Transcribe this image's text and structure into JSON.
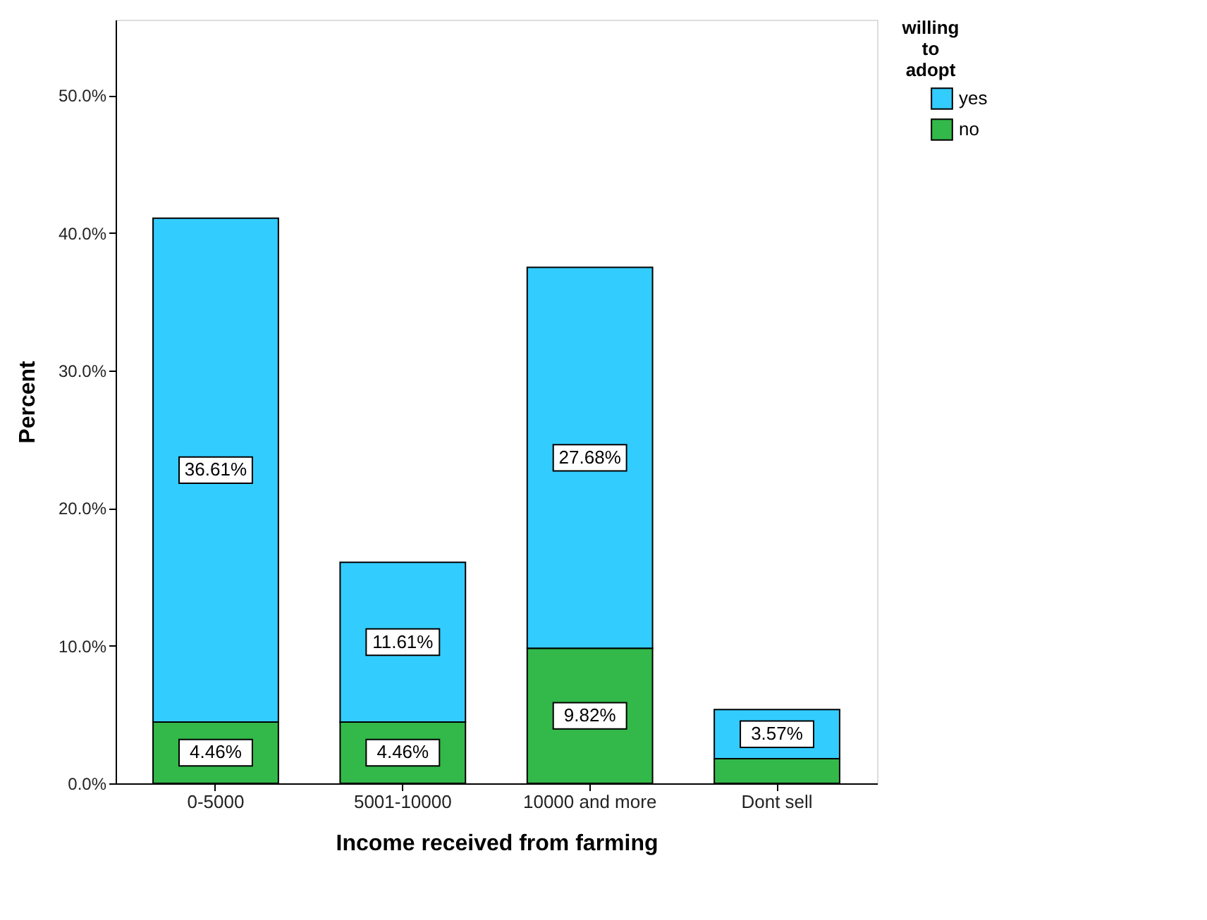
{
  "chart_data": {
    "type": "bar",
    "stacked": true,
    "xlabel": "Income received from farming",
    "ylabel": "Percent",
    "legend_title": "willing to adopt",
    "legend": "top right",
    "grid": false,
    "categories": [
      "0-5000",
      "5001-10000",
      "10000 and more",
      "Dont sell"
    ],
    "series": [
      {
        "name": "no",
        "color": "#33b94a",
        "values": [
          4.46,
          4.46,
          9.82,
          1.79
        ],
        "value_labels": [
          "4.46%",
          "4.46%",
          "9.82%",
          null
        ]
      },
      {
        "name": "yes",
        "color": "#33ccff",
        "values": [
          36.61,
          11.61,
          27.68,
          3.57
        ],
        "value_labels": [
          "36.61%",
          "11.61%",
          "27.68%",
          "3.57%"
        ]
      }
    ],
    "ylim": [
      0,
      55.5
    ],
    "yticks": [
      {
        "value": 0,
        "label": "0.0%"
      },
      {
        "value": 10,
        "label": "10.0%"
      },
      {
        "value": 20,
        "label": "20.0%"
      },
      {
        "value": 30,
        "label": "30.0%"
      },
      {
        "value": 40,
        "label": "40.0%"
      },
      {
        "value": 50,
        "label": "50.0%"
      }
    ]
  }
}
